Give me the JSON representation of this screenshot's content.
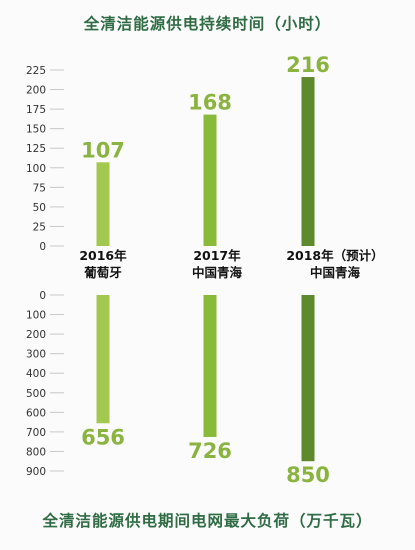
{
  "chart_data": [
    {
      "type": "bar",
      "title": "全清洁能源供电持续时间（小时）",
      "categories": [
        "2016年\n葡萄牙",
        "2017年\n中国青海",
        "2018年（预计）\n中国青海"
      ],
      "values": [
        107,
        168,
        216
      ],
      "ylim": [
        0,
        225
      ],
      "yticks": [
        0,
        25,
        50,
        75,
        100,
        125,
        150,
        175,
        200,
        225
      ],
      "colors": [
        "#a3c84f",
        "#8aba3a",
        "#5e8a2d"
      ],
      "label_color": "#8ab43f",
      "grid": false
    },
    {
      "type": "bar",
      "title": "全清洁能源供电期间电网最大负荷（万千瓦）",
      "categories": [
        "2016年\n葡萄牙",
        "2017年\n中国青海",
        "2018年（预计）\n中国青海"
      ],
      "values": [
        656,
        726,
        850
      ],
      "ylim": [
        0,
        900
      ],
      "yticks": [
        0,
        100,
        200,
        300,
        400,
        500,
        600,
        700,
        800,
        900
      ],
      "y_inverted": true,
      "colors": [
        "#a3c84f",
        "#8aba3a",
        "#5e8a2d"
      ],
      "label_color": "#8ab43f",
      "grid": false
    }
  ]
}
